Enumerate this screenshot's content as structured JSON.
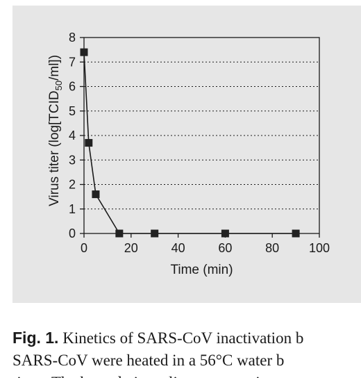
{
  "chart_data": {
    "type": "line",
    "title": "",
    "xlabel": "Time (min)",
    "ylabel_parts": {
      "before": "Virus titer (log[TCID",
      "sub": "50",
      "after": "/ml])"
    },
    "xlim": [
      0,
      100
    ],
    "ylim": [
      0,
      8
    ],
    "x_ticks": [
      0,
      20,
      40,
      60,
      80,
      100
    ],
    "y_ticks": [
      0,
      1,
      2,
      3,
      4,
      5,
      6,
      7,
      8
    ],
    "grid": "horizontal dotted",
    "marker": "square",
    "series": [
      {
        "x": [
          0,
          2,
          5,
          15,
          30,
          60,
          90
        ],
        "y": [
          7.4,
          3.7,
          1.6,
          0,
          0,
          0,
          0
        ]
      }
    ]
  },
  "caption": {
    "lead": "Fig. 1.",
    "line1_rest": " Kinetics of SARS-CoV inactivation b",
    "line2": "SARS-CoV were heated in a 56°C water b",
    "line3": "tions. The heated virus aliquots were ti"
  },
  "colors": {
    "panel": "#e6e6e6",
    "ink": "#1a1a1a",
    "marker": "#222222"
  }
}
